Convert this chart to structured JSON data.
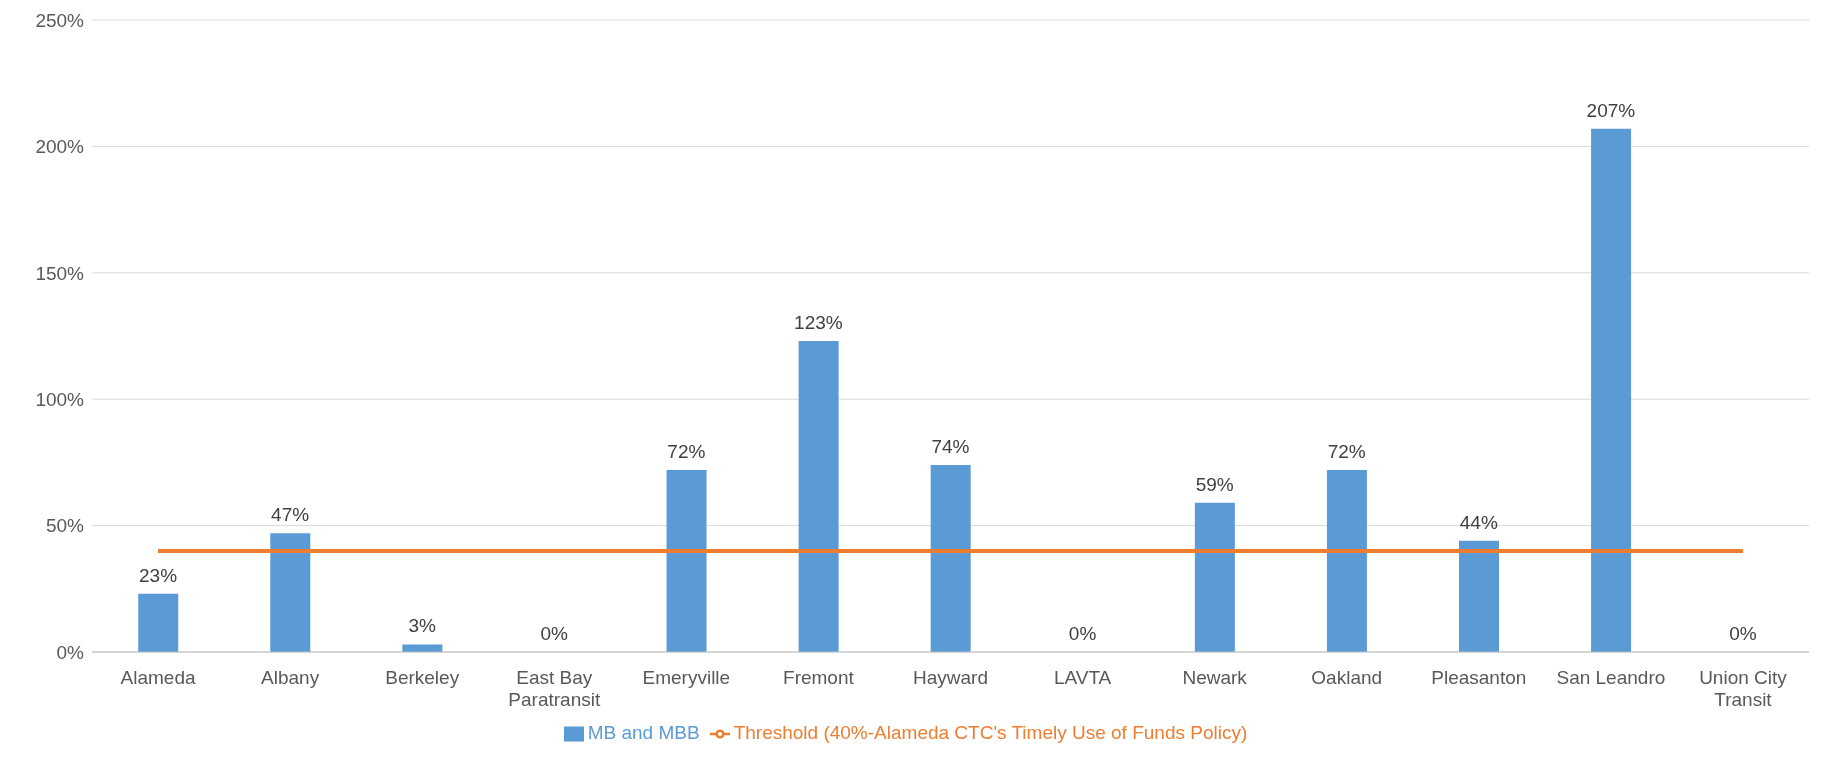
{
  "chart_data": {
    "type": "bar",
    "categories": [
      "Alameda",
      "Albany",
      "Berkeley",
      "East Bay Paratransit",
      "Emeryville",
      "Fremont",
      "Hayward",
      "LAVTA",
      "Newark",
      "Oakland",
      "Pleasanton",
      "San Leandro",
      "Union City Transit"
    ],
    "series": [
      {
        "name": "MB and MBB",
        "color": "#5b9bd5",
        "values": [
          23,
          47,
          3,
          0,
          72,
          123,
          74,
          0,
          59,
          72,
          44,
          207,
          0
        ],
        "value_labels": [
          "23%",
          "47%",
          "3%",
          "0%",
          "72%",
          "123%",
          "74%",
          "0%",
          "59%",
          "72%",
          "44%",
          "207%",
          "0%"
        ]
      },
      {
        "name": "Threshold (40%-Alameda CTC's Timely Use of Funds Policy)",
        "type": "line",
        "color": "#ed7d31",
        "values": [
          40,
          40,
          40,
          40,
          40,
          40,
          40,
          40,
          40,
          40,
          40,
          40,
          40
        ]
      }
    ],
    "ylim": [
      0,
      250
    ],
    "yticks": [
      {
        "value": 0,
        "label": "0%"
      },
      {
        "value": 50,
        "label": "50%"
      },
      {
        "value": 100,
        "label": "100%"
      },
      {
        "value": 150,
        "label": "150%"
      },
      {
        "value": 200,
        "label": "200%"
      },
      {
        "value": 250,
        "label": "250%"
      }
    ],
    "grid": "y",
    "legend": "bottom"
  }
}
